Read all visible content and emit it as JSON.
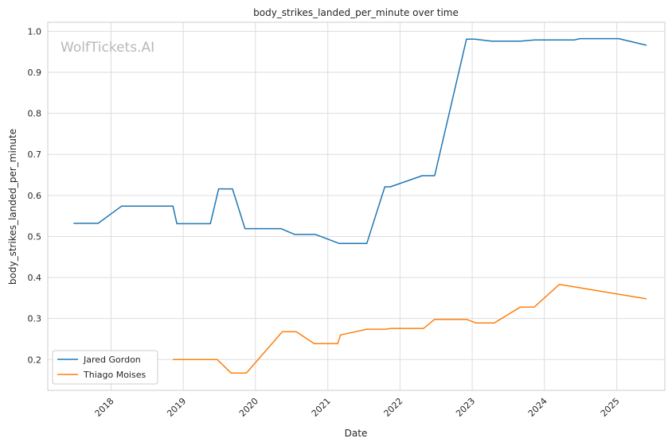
{
  "chart_data": {
    "type": "line",
    "title": "body_strikes_landed_per_minute over time",
    "xlabel": "Date",
    "ylabel": "body_strikes_landed_per_minute",
    "watermark": "WolfTickets.AI",
    "xlim": [
      "2017-02-15",
      "2025-09-01"
    ],
    "ylim": [
      0.125,
      1.022
    ],
    "x_ticks": [
      "2018-01-01",
      "2019-01-01",
      "2020-01-01",
      "2021-01-01",
      "2022-01-01",
      "2023-01-01",
      "2024-01-01",
      "2025-01-01"
    ],
    "x_tick_labels": [
      "2018",
      "2019",
      "2020",
      "2021",
      "2022",
      "2023",
      "2024",
      "2025"
    ],
    "y_ticks": [
      0.2,
      0.3,
      0.4,
      0.5,
      0.6,
      0.7,
      0.8,
      0.9,
      1.0
    ],
    "y_tick_labels": [
      "0.2",
      "0.3",
      "0.4",
      "0.5",
      "0.6",
      "0.7",
      "0.8",
      "0.9",
      "1.0"
    ],
    "grid": true,
    "legend_position": "bottom-left",
    "series": [
      {
        "name": "Jared Gordon",
        "color": "#1f77b4",
        "points": [
          [
            "2017-06-25",
            0.532
          ],
          [
            "2017-10-28",
            0.532
          ],
          [
            "2018-02-24",
            0.574
          ],
          [
            "2018-11-10",
            0.574
          ],
          [
            "2018-11-30",
            0.531
          ],
          [
            "2019-05-18",
            0.531
          ],
          [
            "2019-06-29",
            0.616
          ],
          [
            "2019-09-07",
            0.616
          ],
          [
            "2019-11-09",
            0.519
          ],
          [
            "2020-05-09",
            0.519
          ],
          [
            "2020-07-18",
            0.505
          ],
          [
            "2020-10-31",
            0.505
          ],
          [
            "2021-02-27",
            0.483
          ],
          [
            "2021-07-17",
            0.483
          ],
          [
            "2021-10-16",
            0.621
          ],
          [
            "2021-11-13",
            0.621
          ],
          [
            "2022-04-23",
            0.648
          ],
          [
            "2022-06-25",
            0.648
          ],
          [
            "2022-12-03",
            0.981
          ],
          [
            "2023-01-14",
            0.981
          ],
          [
            "2023-04-08",
            0.976
          ],
          [
            "2023-09-02",
            0.976
          ],
          [
            "2023-11-11",
            0.979
          ],
          [
            "2024-06-01",
            0.979
          ],
          [
            "2024-06-29",
            0.982
          ],
          [
            "2025-01-11",
            0.982
          ],
          [
            "2025-05-31",
            0.966
          ]
        ]
      },
      {
        "name": "Thiago Moises",
        "color": "#ff7f0e",
        "points": [
          [
            "2018-11-10",
            0.2
          ],
          [
            "2019-06-22",
            0.2
          ],
          [
            "2019-08-31",
            0.167
          ],
          [
            "2019-11-16",
            0.167
          ],
          [
            "2020-05-16",
            0.268
          ],
          [
            "2020-07-25",
            0.268
          ],
          [
            "2020-10-24",
            0.239
          ],
          [
            "2021-02-20",
            0.239
          ],
          [
            "2021-03-06",
            0.26
          ],
          [
            "2021-07-17",
            0.274
          ],
          [
            "2021-10-16",
            0.274
          ],
          [
            "2021-11-20",
            0.276
          ],
          [
            "2022-04-30",
            0.276
          ],
          [
            "2022-06-25",
            0.298
          ],
          [
            "2022-12-03",
            0.298
          ],
          [
            "2023-01-21",
            0.289
          ],
          [
            "2023-04-22",
            0.289
          ],
          [
            "2023-09-02",
            0.328
          ],
          [
            "2023-11-11",
            0.328
          ],
          [
            "2024-03-16",
            0.383
          ],
          [
            "2024-06-15",
            0.376
          ],
          [
            "2024-06-29",
            0.375
          ],
          [
            "2025-05-31",
            0.348
          ]
        ]
      }
    ]
  }
}
